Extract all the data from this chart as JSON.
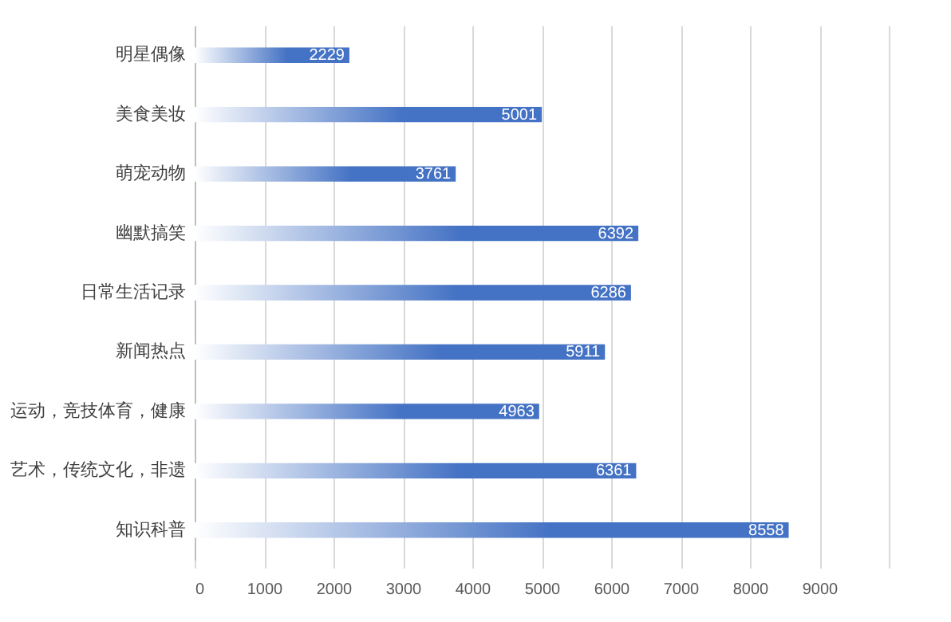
{
  "chart_data": {
    "type": "bar",
    "orientation": "horizontal",
    "categories": [
      "明星偶像",
      "美食美妆",
      "萌宠动物",
      "幽默搞笑",
      "日常生活记录",
      "新闻热点",
      "运动，竞技体育，健康",
      "艺术，传统文化，非遗",
      "知识科普"
    ],
    "values": [
      2229,
      5001,
      3761,
      6392,
      6286,
      5911,
      4963,
      6361,
      8558
    ],
    "color": "#4472c4",
    "xlim": [
      0,
      10000
    ],
    "xticks": [
      0,
      1000,
      2000,
      3000,
      4000,
      5000,
      6000,
      7000,
      8000,
      9000,
      {
        "value": 10000,
        "label": null
      }
    ],
    "grid": "x",
    "data_labels": true
  }
}
